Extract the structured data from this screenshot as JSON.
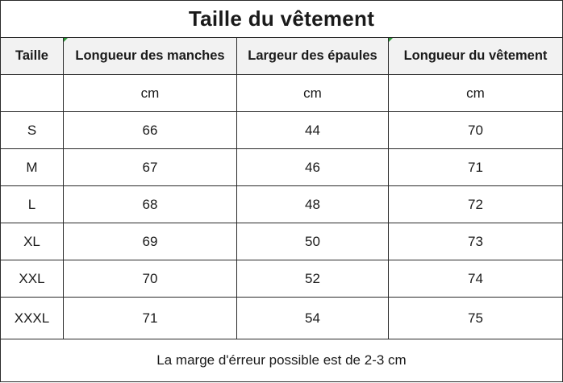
{
  "title": "Taille du vêtement",
  "headers": [
    "Taille",
    "Longueur des manches",
    "Largeur des épaules",
    "Longueur du vêtement"
  ],
  "units": [
    "",
    "cm",
    "cm",
    "cm"
  ],
  "rows": [
    [
      "S",
      "66",
      "44",
      "70"
    ],
    [
      "M",
      "67",
      "46",
      "71"
    ],
    [
      "L",
      "68",
      "48",
      "72"
    ],
    [
      "XL",
      "69",
      "50",
      "73"
    ],
    [
      "XXL",
      "70",
      "52",
      "74"
    ],
    [
      "XXXL",
      "71",
      "54",
      "75"
    ]
  ],
  "footer": "La marge d'érreur possible est de 2-3 cm",
  "colors": {
    "header_background": "#f2f2f2",
    "border": "#2a2a2a",
    "cell_marker": "#2e9b3a"
  }
}
